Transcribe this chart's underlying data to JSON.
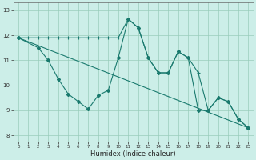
{
  "title": "",
  "xlabel": "Humidex (Indice chaleur)",
  "bg_color": "#cceee8",
  "grid_color": "#99ccbb",
  "line_color": "#1a7a6e",
  "xlim": [
    -0.5,
    23.5
  ],
  "ylim": [
    7.75,
    13.3
  ],
  "xticks": [
    0,
    1,
    2,
    3,
    4,
    5,
    6,
    7,
    8,
    9,
    10,
    11,
    12,
    13,
    14,
    15,
    16,
    17,
    18,
    19,
    20,
    21,
    22,
    23
  ],
  "yticks": [
    8,
    9,
    10,
    11,
    12,
    13
  ],
  "line1_x": [
    0,
    1,
    2,
    3,
    4,
    5,
    6,
    7,
    8,
    9,
    10,
    11,
    12,
    13,
    14,
    15,
    16,
    17,
    18,
    19,
    20,
    21,
    22,
    23
  ],
  "line1_y": [
    11.9,
    11.9,
    11.9,
    11.9,
    11.9,
    11.9,
    11.9,
    11.9,
    11.9,
    11.9,
    11.9,
    12.65,
    12.3,
    11.1,
    10.5,
    10.5,
    11.35,
    11.1,
    10.5,
    9.0,
    9.5,
    9.35,
    8.65,
    8.3
  ],
  "line2_x": [
    0,
    2,
    3,
    4,
    5,
    6,
    7,
    8,
    9,
    10,
    11,
    12,
    13,
    14,
    15,
    16,
    17,
    18,
    19,
    20,
    21,
    22,
    23
  ],
  "line2_y": [
    11.9,
    11.5,
    11.0,
    10.25,
    9.65,
    9.35,
    9.05,
    9.6,
    9.8,
    11.1,
    12.65,
    12.3,
    11.1,
    10.5,
    10.5,
    11.35,
    11.1,
    9.0,
    9.0,
    9.5,
    9.35,
    8.65,
    8.3
  ],
  "line3_x": [
    0,
    23
  ],
  "line3_y": [
    11.9,
    8.3
  ]
}
